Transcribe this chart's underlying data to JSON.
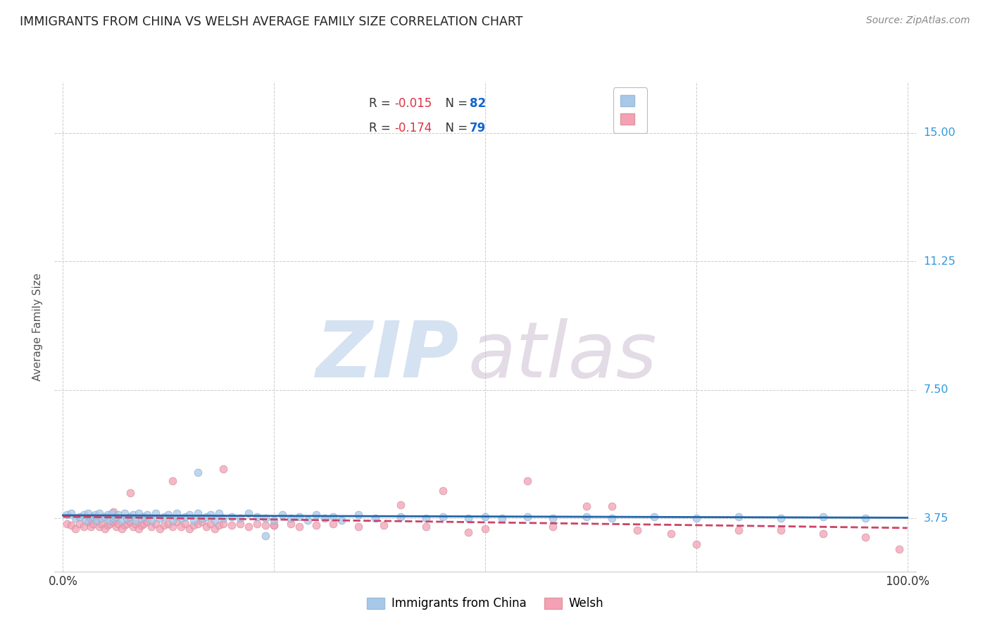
{
  "title": "IMMIGRANTS FROM CHINA VS WELSH AVERAGE FAMILY SIZE CORRELATION CHART",
  "source": "Source: ZipAtlas.com",
  "ylabel": "Average Family Size",
  "watermark_zip": "ZIP",
  "watermark_atlas": "atlas",
  "legend_entries": [
    {
      "label": "Immigrants from China",
      "R": "-0.015",
      "N": "82",
      "color": "#a8c4e0",
      "edge": "#7aaac8"
    },
    {
      "label": "Welsh",
      "R": "-0.174",
      "N": "79",
      "color": "#f4a0b0",
      "edge": "#d8788a"
    }
  ],
  "yticks": [
    3.75,
    7.5,
    11.25,
    15.0
  ],
  "ylim": [
    2.2,
    16.5
  ],
  "xlim": [
    -0.01,
    1.01
  ],
  "xtick_labels": [
    "0.0%",
    "100.0%"
  ],
  "xtick_positions": [
    0.0,
    1.0
  ],
  "blue_scatter_x": [
    0.005,
    0.01,
    0.015,
    0.02,
    0.025,
    0.027,
    0.03,
    0.033,
    0.036,
    0.038,
    0.04,
    0.043,
    0.046,
    0.05,
    0.053,
    0.055,
    0.058,
    0.06,
    0.063,
    0.066,
    0.07,
    0.073,
    0.076,
    0.08,
    0.083,
    0.086,
    0.09,
    0.093,
    0.096,
    0.1,
    0.105,
    0.11,
    0.115,
    0.12,
    0.125,
    0.13,
    0.135,
    0.14,
    0.145,
    0.15,
    0.155,
    0.16,
    0.165,
    0.17,
    0.175,
    0.18,
    0.185,
    0.19,
    0.2,
    0.21,
    0.22,
    0.23,
    0.24,
    0.25,
    0.26,
    0.27,
    0.28,
    0.29,
    0.3,
    0.31,
    0.32,
    0.33,
    0.35,
    0.37,
    0.4,
    0.43,
    0.45,
    0.48,
    0.5,
    0.52,
    0.55,
    0.58,
    0.62,
    0.65,
    0.7,
    0.75,
    0.8,
    0.85,
    0.9,
    0.95,
    0.24,
    0.16
  ],
  "blue_scatter_y": [
    3.85,
    3.9,
    3.75,
    3.8,
    3.85,
    3.7,
    3.9,
    3.75,
    3.8,
    3.85,
    3.7,
    3.9,
    3.75,
    3.8,
    3.85,
    3.7,
    3.9,
    3.75,
    3.8,
    3.85,
    3.7,
    3.9,
    3.75,
    3.8,
    3.85,
    3.7,
    3.9,
    3.75,
    3.8,
    3.85,
    3.7,
    3.9,
    3.75,
    3.8,
    3.85,
    3.7,
    3.9,
    3.75,
    3.8,
    3.85,
    3.7,
    3.9,
    3.75,
    3.8,
    3.85,
    3.7,
    3.9,
    3.75,
    3.8,
    3.75,
    3.9,
    3.8,
    3.75,
    3.7,
    3.85,
    3.75,
    3.8,
    3.7,
    3.85,
    3.75,
    3.8,
    3.7,
    3.85,
    3.75,
    3.8,
    3.75,
    3.8,
    3.75,
    3.8,
    3.75,
    3.8,
    3.75,
    3.8,
    3.75,
    3.8,
    3.75,
    3.8,
    3.75,
    3.8,
    3.75,
    3.25,
    5.1
  ],
  "pink_scatter_x": [
    0.005,
    0.01,
    0.015,
    0.02,
    0.025,
    0.03,
    0.033,
    0.036,
    0.04,
    0.043,
    0.046,
    0.05,
    0.053,
    0.056,
    0.06,
    0.063,
    0.066,
    0.07,
    0.073,
    0.076,
    0.08,
    0.083,
    0.086,
    0.09,
    0.093,
    0.096,
    0.1,
    0.105,
    0.11,
    0.115,
    0.12,
    0.125,
    0.13,
    0.135,
    0.14,
    0.145,
    0.15,
    0.155,
    0.16,
    0.165,
    0.17,
    0.175,
    0.18,
    0.185,
    0.19,
    0.2,
    0.21,
    0.22,
    0.23,
    0.24,
    0.25,
    0.27,
    0.28,
    0.3,
    0.32,
    0.35,
    0.38,
    0.4,
    0.43,
    0.45,
    0.48,
    0.5,
    0.55,
    0.58,
    0.62,
    0.65,
    0.68,
    0.72,
    0.75,
    0.8,
    0.85,
    0.9,
    0.95,
    0.99,
    0.13,
    0.19,
    0.25,
    0.08,
    0.06
  ],
  "pink_scatter_y": [
    3.6,
    3.55,
    3.45,
    3.6,
    3.5,
    3.65,
    3.5,
    3.6,
    3.7,
    3.5,
    3.6,
    3.45,
    3.55,
    3.6,
    3.65,
    3.5,
    3.6,
    3.45,
    3.55,
    3.6,
    3.65,
    3.5,
    3.6,
    3.45,
    3.55,
    3.6,
    3.65,
    3.5,
    3.6,
    3.45,
    3.55,
    3.6,
    3.5,
    3.65,
    3.5,
    3.6,
    3.45,
    3.55,
    3.6,
    3.65,
    3.5,
    3.6,
    3.45,
    3.55,
    3.6,
    3.55,
    3.6,
    3.5,
    3.6,
    3.55,
    3.55,
    3.6,
    3.5,
    3.55,
    3.6,
    3.5,
    3.55,
    4.15,
    3.5,
    4.55,
    3.35,
    3.45,
    4.85,
    3.5,
    4.1,
    4.1,
    3.4,
    3.3,
    3.0,
    3.4,
    3.4,
    3.3,
    3.2,
    2.85,
    4.85,
    5.2,
    3.55,
    4.5,
    3.95
  ],
  "blue_line_x": [
    0.0,
    1.0
  ],
  "blue_line_y": [
    3.84,
    3.77
  ],
  "pink_line_x": [
    0.0,
    1.0
  ],
  "pink_line_y": [
    3.8,
    3.47
  ],
  "scatter_size": 60,
  "blue_color": "#a8c8e8",
  "pink_color": "#f4a0b5",
  "blue_line_color": "#2266aa",
  "pink_line_color": "#cc4466",
  "blue_edge_color": "#88aacc",
  "pink_edge_color": "#cc8898",
  "background_color": "#ffffff",
  "grid_color": "#cccccc",
  "title_color": "#222222",
  "axis_label_color": "#555555",
  "right_tick_color": "#3399dd",
  "source_color": "#888888",
  "legend_R_color": "#dd3344",
  "legend_N_color": "#1166cc"
}
